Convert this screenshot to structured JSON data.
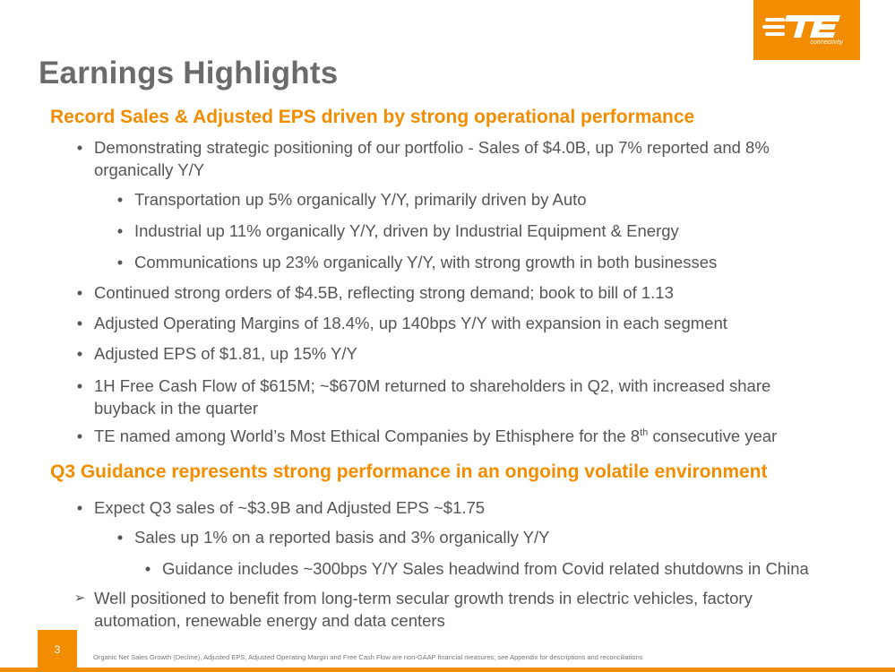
{
  "logo": {
    "text": "TE",
    "tagline": "connectivity"
  },
  "title": "Earnings Highlights",
  "sections": [
    {
      "heading": "Record Sales & Adjusted EPS driven by strong operational performance",
      "bullets": [
        {
          "line1": "Demonstrating strategic positioning of our portfolio - Sales of $4.0B, up 7% reported and 8%",
          "line2": "organically Y/Y"
        },
        {
          "text": "Transportation up 5% organically Y/Y, primarily driven by Auto"
        },
        {
          "text": "Industrial up 11% organically Y/Y, driven by Industrial Equipment & Energy"
        },
        {
          "text": "Communications up 23% organically Y/Y, with strong growth in both businesses"
        },
        {
          "text": "Continued strong orders of $4.5B, reflecting strong demand; book to bill of 1.13"
        },
        {
          "text": "Adjusted Operating Margins of 18.4%, up 140bps Y/Y with expansion in each segment"
        },
        {
          "text": "Adjusted EPS of $1.81, up 15% Y/Y"
        },
        {
          "line1": "1H Free Cash Flow of $615M; ~$670M returned to shareholders in Q2, with increased share",
          "line2": "buyback in the quarter"
        },
        {
          "pre": "TE named among World’s Most Ethical Companies by Ethisphere for the 8",
          "sup": "th",
          "post": " consecutive year"
        }
      ]
    },
    {
      "heading": "Q3 Guidance represents strong performance in an ongoing volatile environment",
      "bullets": [
        {
          "text": "Expect Q3 sales of ~$3.9B and Adjusted EPS ~$1.75"
        },
        {
          "text": "Sales up 1% on a reported basis and 3% organically Y/Y"
        },
        {
          "text": "Guidance includes ~300bps Y/Y Sales headwind from Covid related shutdowns in China"
        },
        {
          "line1": "Well positioned to benefit from long-term secular growth trends in electric vehicles, factory",
          "line2": "automation, renewable energy and data centers"
        }
      ]
    }
  ],
  "marks": {
    "bullet": "•",
    "arrow": "➢"
  },
  "footer": {
    "page_number": "3",
    "footnote": "Organic Net Sales Growth (Decline), Adjusted EPS, Adjusted Operating Margin and Free Cash Flow are non-GAAP financial measures; see Appendix for descriptions and reconciliations"
  },
  "colors": {
    "accent": "#f28c00",
    "title": "#6b6b6b",
    "body": "#555555"
  }
}
